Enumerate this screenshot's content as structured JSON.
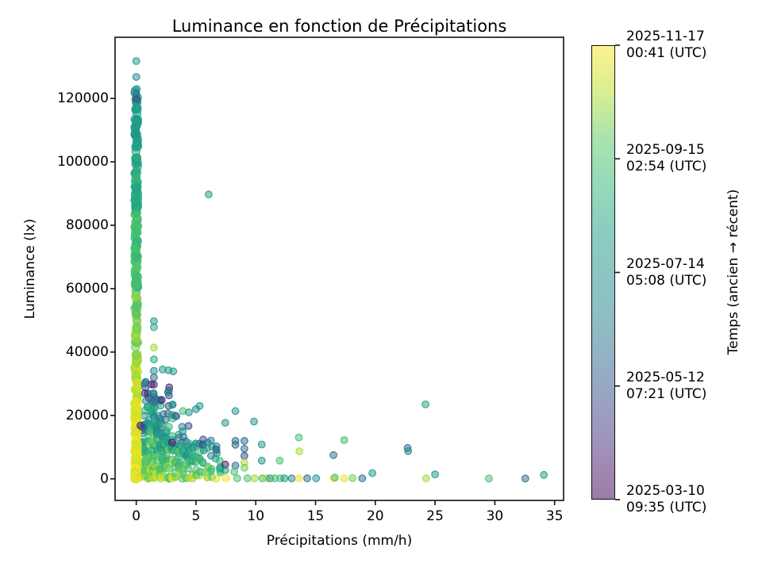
{
  "title": "Luminance en fonction de Précipitations",
  "chart_data": {
    "type": "scatter",
    "title": "Luminance en fonction de Précipitations",
    "xlabel": "Précipitations (mm/h)",
    "ylabel": "Luminance (lx)",
    "xlim": [
      -1.77,
      35.75
    ],
    "ylim": [
      -6800,
      139300
    ],
    "xticks": [
      0,
      5,
      10,
      15,
      20,
      25,
      30,
      35
    ],
    "yticks": [
      0,
      20000,
      40000,
      60000,
      80000,
      100000,
      120000
    ],
    "grid": false,
    "marker": {
      "radius_main": 5,
      "radius": 4.3,
      "fill_opacity": 0.5,
      "stroke_opacity": 0.85
    },
    "colorbar": {
      "label": "Temps (ancien → récent)",
      "alpha_blend": 0.52,
      "ticks": [
        {
          "frac": 1.0,
          "l1": "2025-11-17",
          "l2": "00:41 (UTC)"
        },
        {
          "frac": 0.75,
          "l1": "2025-09-15",
          "l2": "02:54 (UTC)"
        },
        {
          "frac": 0.5,
          "l1": "2025-07-14",
          "l2": "05:08 (UTC)"
        },
        {
          "frac": 0.25,
          "l1": "2025-05-12",
          "l2": "07:21 (UTC)"
        },
        {
          "frac": 0.0,
          "l1": "2025-03-10",
          "l2": "09:35 (UTC)"
        }
      ]
    },
    "viridis_stops": [
      [
        0.0,
        "#440154"
      ],
      [
        0.1,
        "#482878"
      ],
      [
        0.2,
        "#3e4989"
      ],
      [
        0.3,
        "#31688e"
      ],
      [
        0.4,
        "#26828e"
      ],
      [
        0.5,
        "#21918c"
      ],
      [
        0.6,
        "#1fa187"
      ],
      [
        0.7,
        "#35b779"
      ],
      [
        0.8,
        "#5ec962"
      ],
      [
        0.9,
        "#b5de2b"
      ],
      [
        1.0,
        "#fde725"
      ]
    ],
    "class_t": {
      "yellow": 0.98,
      "yellow-green": 0.88,
      "olive": 0.83,
      "green": 0.74,
      "teal-green": 0.63,
      "teal": 0.54,
      "teal-blue": 0.44,
      "blue": 0.32,
      "dark-blue": 0.21,
      "purple": 0.07
    },
    "columns": [
      [
        0.0,
        122500,
        300
      ],
      [
        0.25,
        6000,
        16
      ],
      [
        0.5,
        17000,
        22
      ],
      [
        0.75,
        31000,
        26
      ],
      [
        1.0,
        27000,
        26
      ],
      [
        1.26,
        36000,
        26
      ],
      [
        1.48,
        30000,
        30
      ],
      [
        1.75,
        26000,
        22
      ],
      [
        2.0,
        25000,
        22
      ],
      [
        2.21,
        30000,
        18
      ],
      [
        2.5,
        23000,
        18
      ],
      [
        2.7,
        30000,
        16
      ],
      [
        3.0,
        25000,
        16
      ],
      [
        3.3,
        21500,
        14
      ],
      [
        3.6,
        16000,
        12
      ],
      [
        3.9,
        18000,
        11
      ],
      [
        4.2,
        12000,
        9
      ],
      [
        4.4,
        19000,
        9
      ],
      [
        4.7,
        13000,
        8
      ],
      [
        5.0,
        21000,
        9
      ],
      [
        5.3,
        18000,
        8
      ],
      [
        5.6,
        15000,
        7
      ],
      [
        6.0,
        16000,
        7
      ],
      [
        6.3,
        14000,
        6
      ],
      [
        6.7,
        12000,
        6
      ],
      [
        7.0,
        13500,
        6
      ]
    ],
    "main_extra_low": {
      "count": 80,
      "ymax": 25000
    },
    "points": [
      [
        0.0,
        131800,
        "teal"
      ],
      [
        0.0,
        126800,
        "teal-blue"
      ],
      [
        0.05,
        123000,
        "teal"
      ],
      [
        0.0,
        121500,
        "blue"
      ],
      [
        0.05,
        119800,
        "dark-blue"
      ],
      [
        0.35,
        16800,
        "purple"
      ],
      [
        0.5,
        16300,
        "dark-blue"
      ],
      [
        0.73,
        27000,
        "purple"
      ],
      [
        1.26,
        29800,
        "purple"
      ],
      [
        3.0,
        11500,
        "purple"
      ],
      [
        1.48,
        49750,
        "teal"
      ],
      [
        1.48,
        47800,
        "teal-green"
      ],
      [
        1.48,
        41400,
        "yellow-green"
      ],
      [
        1.48,
        37675,
        "teal-green"
      ],
      [
        1.48,
        34075,
        "teal-blue"
      ],
      [
        1.48,
        32000,
        "blue"
      ],
      [
        0.7,
        30000,
        "blue"
      ],
      [
        2.21,
        34500,
        "teal"
      ],
      [
        2.7,
        34250,
        "teal"
      ],
      [
        3.1,
        33900,
        "teal"
      ],
      [
        6.06,
        89750,
        "teal"
      ],
      [
        3.9,
        21400,
        "green"
      ],
      [
        4.4,
        21000,
        "teal"
      ],
      [
        5.3,
        23000,
        "teal"
      ],
      [
        5.0,
        22000,
        "teal-blue"
      ],
      [
        7.45,
        17700,
        "teal"
      ],
      [
        7.45,
        4500,
        "purple"
      ],
      [
        7.45,
        2750,
        "teal"
      ],
      [
        7.5,
        150,
        "yellow"
      ],
      [
        8.3,
        21400,
        "teal"
      ],
      [
        8.3,
        12000,
        "blue"
      ],
      [
        8.3,
        10750,
        "blue"
      ],
      [
        8.3,
        4175,
        "blue"
      ],
      [
        8.2,
        2250,
        "green"
      ],
      [
        8.45,
        150,
        "green"
      ],
      [
        9.05,
        12000,
        "blue"
      ],
      [
        9.05,
        9500,
        "blue"
      ],
      [
        9.05,
        7250,
        "dark-blue"
      ],
      [
        9.05,
        5175,
        "yellow-green"
      ],
      [
        9.05,
        3500,
        "olive"
      ],
      [
        9.3,
        150,
        "green"
      ],
      [
        9.85,
        18100,
        "teal"
      ],
      [
        9.9,
        150,
        "yellow-green"
      ],
      [
        10.5,
        10825,
        "teal"
      ],
      [
        10.5,
        5750,
        "teal"
      ],
      [
        10.55,
        150,
        "green"
      ],
      [
        10.9,
        150,
        "yellow-green"
      ],
      [
        11.2,
        150,
        "teal"
      ],
      [
        11.6,
        150,
        "green"
      ],
      [
        12.0,
        5750,
        "green"
      ],
      [
        12.05,
        150,
        "green"
      ],
      [
        12.4,
        150,
        "teal"
      ],
      [
        13.0,
        150,
        "teal-blue"
      ],
      [
        13.6,
        13075,
        "green"
      ],
      [
        13.65,
        8675,
        "yellow-green"
      ],
      [
        13.6,
        150,
        "yellow"
      ],
      [
        14.3,
        150,
        "blue"
      ],
      [
        15.05,
        150,
        "teal"
      ],
      [
        16.5,
        7500,
        "blue"
      ],
      [
        16.5,
        150,
        "yellow"
      ],
      [
        16.62,
        400,
        "green"
      ],
      [
        17.4,
        12250,
        "green"
      ],
      [
        17.4,
        150,
        "yellow"
      ],
      [
        18.1,
        250,
        "olive"
      ],
      [
        18.9,
        150,
        "blue"
      ],
      [
        19.75,
        1825,
        "teal"
      ],
      [
        22.7,
        9750,
        "blue"
      ],
      [
        22.75,
        8750,
        "teal-blue"
      ],
      [
        24.2,
        23500,
        "teal-green"
      ],
      [
        24.25,
        150,
        "yellow-green"
      ],
      [
        25.0,
        1425,
        "teal"
      ],
      [
        29.5,
        100,
        "green"
      ],
      [
        32.55,
        100,
        "blue"
      ],
      [
        34.1,
        1250,
        "teal"
      ]
    ]
  }
}
